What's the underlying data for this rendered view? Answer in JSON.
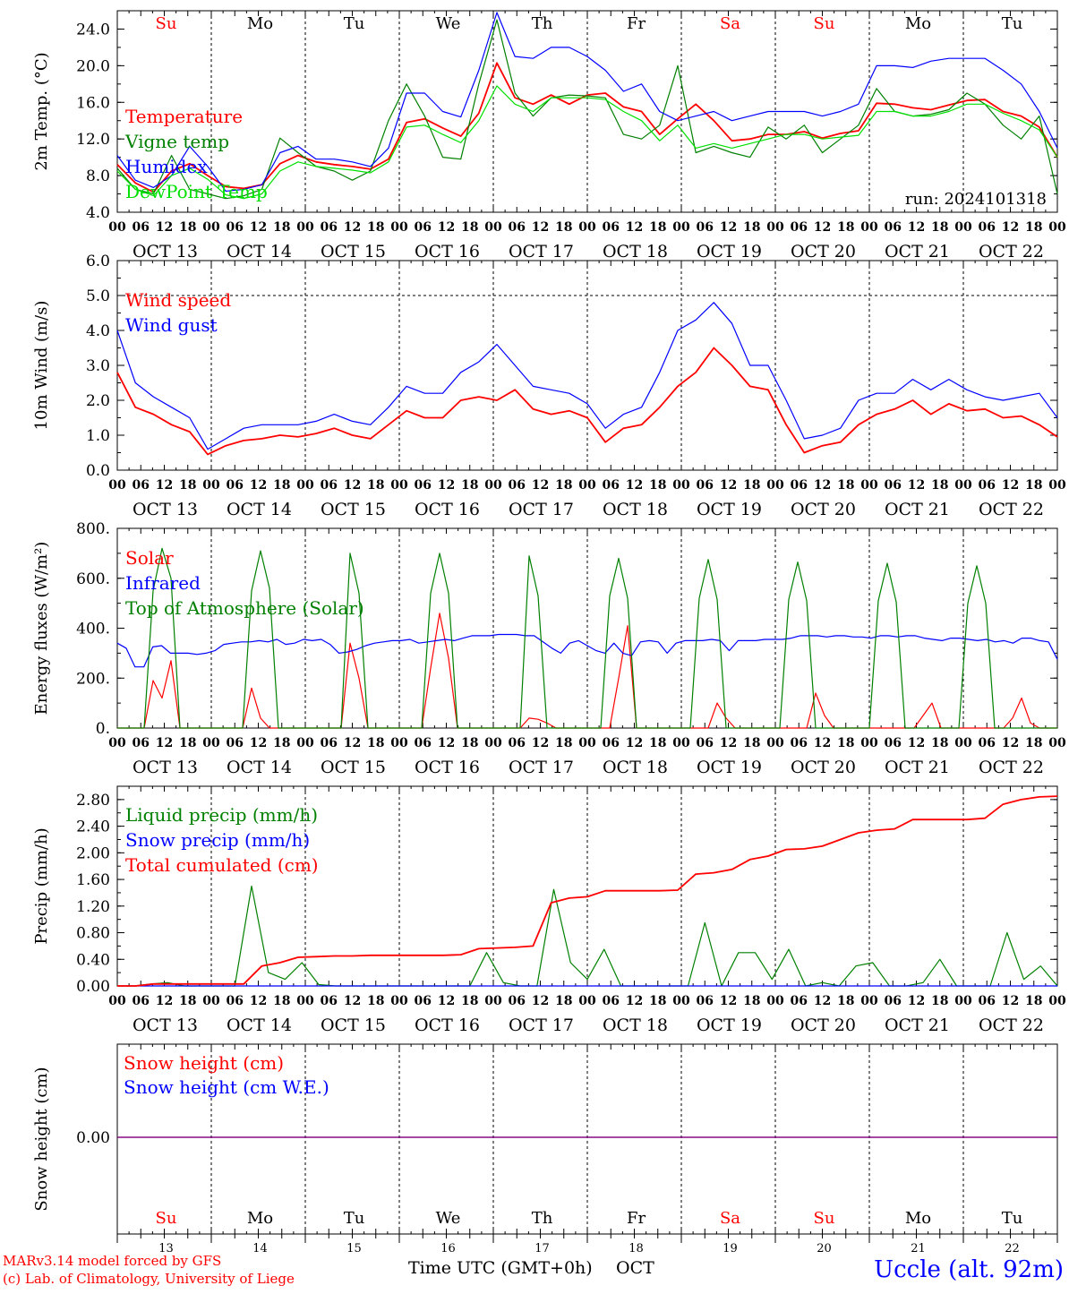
{
  "run_label": "run: 2024101318",
  "days": [
    "Su",
    "Mo",
    "Tu",
    "We",
    "Th",
    "Fr",
    "Sa",
    "Su",
    "Mo",
    "Tu"
  ],
  "weekend_color": "#ff0000",
  "date_labels": [
    "OCT 13",
    "OCT 14",
    "OCT 15",
    "OCT 16",
    "OCT 17",
    "OCT 18",
    "OCT 19",
    "OCT 20",
    "OCT 21",
    "OCT 22"
  ],
  "hour_ticks": [
    "00",
    "06",
    "12",
    "18"
  ],
  "bottom_day_numbers": [
    "13",
    "14",
    "15",
    "16",
    "17",
    "18",
    "19",
    "20",
    "21",
    "22"
  ],
  "footer": {
    "model": "MARv3.14 model forced by GFS",
    "lab": "(c) Lab. of Climatology, University of Liege",
    "axis_title": "Time UTC (GMT+0h)",
    "month": "OCT",
    "station": "Uccle (alt. 92m)"
  },
  "colors": {
    "red": "#ff0000",
    "green": "#008000",
    "blue": "#0000ff",
    "lightgreen": "#00e000",
    "purple": "#800080"
  },
  "chart_data": [
    {
      "type": "line",
      "ylabel": "2m Temp. (°C)",
      "ylim": [
        4,
        26
      ],
      "yticks": [
        "4.0",
        "8.0",
        "12.0",
        "16.0",
        "20.0",
        "24.0"
      ],
      "ytick_values": [
        4,
        8,
        12,
        16,
        20,
        24
      ],
      "x_step_hours": 6,
      "series": [
        {
          "name": "Temperature",
          "color": "#ff0000",
          "values": [
            9.2,
            7.2,
            6.2,
            8.5,
            9.3,
            8.0,
            6.8,
            6.6,
            7.0,
            9.3,
            10.2,
            9.5,
            9.2,
            9.0,
            8.7,
            9.8,
            13.8,
            14.2,
            13.2,
            12.3,
            14.8,
            20.3,
            16.5,
            15.8,
            16.8,
            15.8,
            16.8,
            17.0,
            15.5,
            15.0,
            12.5,
            14.2,
            15.8,
            14.0,
            11.8,
            12.0,
            12.5,
            12.5,
            12.8,
            12.1,
            12.6,
            12.9,
            15.9,
            15.8,
            15.4,
            15.2,
            15.7,
            16.2,
            16.3,
            15.0,
            14.5,
            13.3,
            10.0
          ]
        },
        {
          "name": "Vigne temp",
          "color": "#008000",
          "values": [
            8.8,
            6.5,
            6.0,
            10.2,
            6.5,
            6.0,
            5.5,
            5.8,
            6.5,
            12.1,
            10.5,
            9.0,
            8.5,
            7.5,
            8.5,
            14.0,
            18.0,
            14.5,
            10.0,
            9.8,
            18.0,
            25.0,
            17.0,
            14.5,
            16.5,
            16.8,
            16.7,
            16.5,
            12.5,
            12.0,
            13.5,
            20.0,
            10.5,
            11.2,
            10.5,
            10.0,
            13.3,
            12.0,
            13.5,
            10.5,
            12.0,
            13.5,
            17.5,
            15.0,
            14.5,
            14.7,
            15.2,
            17.0,
            15.8,
            13.5,
            12.0,
            14.5,
            6.0
          ]
        },
        {
          "name": "Humidex",
          "color": "#0000ff",
          "values": [
            10.2,
            7.5,
            6.7,
            8.0,
            11.2,
            9.0,
            6.3,
            6.5,
            7.0,
            10.5,
            11.2,
            9.8,
            9.8,
            9.5,
            9.0,
            11.0,
            17.0,
            17.0,
            15.0,
            14.4,
            19.5,
            25.8,
            21.0,
            20.8,
            22.0,
            22.0,
            21.0,
            19.5,
            17.2,
            18.0,
            15.0,
            14.0,
            14.5,
            15.0,
            14.0,
            14.5,
            15.0,
            15.0,
            15.0,
            14.5,
            15.0,
            15.8,
            20.0,
            20.0,
            19.8,
            20.5,
            20.8,
            20.8,
            20.8,
            19.5,
            18.0,
            15.0,
            11.0
          ]
        },
        {
          "name": "DewPoint Temp",
          "color": "#00e000",
          "values": [
            8.5,
            6.5,
            5.8,
            8.0,
            8.8,
            7.6,
            5.9,
            5.5,
            6.0,
            8.5,
            9.5,
            9.0,
            8.8,
            8.6,
            8.3,
            9.5,
            13.3,
            13.5,
            12.5,
            11.6,
            14.0,
            17.8,
            15.8,
            15.0,
            16.5,
            16.5,
            16.5,
            16.3,
            15.0,
            14.0,
            11.8,
            13.5,
            11.0,
            11.5,
            11.0,
            11.5,
            12.0,
            12.5,
            12.5,
            12.0,
            12.2,
            12.4,
            15.0,
            15.0,
            14.5,
            14.5,
            15.0,
            15.8,
            15.8,
            14.8,
            14.0,
            13.0,
            10.0
          ]
        }
      ]
    },
    {
      "type": "line",
      "ylabel": "10m Wind (m/s)",
      "ylim": [
        0,
        6
      ],
      "yticks": [
        "0.0",
        "1.0",
        "2.0",
        "3.0",
        "4.0",
        "5.0",
        "6.0"
      ],
      "ytick_values": [
        0,
        1,
        2,
        3,
        4,
        5,
        6
      ],
      "ref_line": 5.0,
      "x_step_hours": 6,
      "series": [
        {
          "name": "Wind speed",
          "color": "#ff0000",
          "values": [
            2.8,
            1.8,
            1.6,
            1.3,
            1.1,
            0.45,
            0.7,
            0.85,
            0.9,
            1.0,
            0.95,
            1.05,
            1.2,
            1.0,
            0.9,
            1.3,
            1.7,
            1.5,
            1.5,
            2.0,
            2.1,
            2.0,
            2.3,
            1.75,
            1.6,
            1.7,
            1.5,
            0.8,
            1.2,
            1.3,
            1.8,
            2.4,
            2.8,
            3.5,
            3.0,
            2.4,
            2.3,
            1.3,
            0.5,
            0.7,
            0.8,
            1.3,
            1.6,
            1.75,
            2.0,
            1.6,
            1.9,
            1.7,
            1.75,
            1.5,
            1.55,
            1.3,
            0.95
          ]
        },
        {
          "name": "Wind gust",
          "color": "#0000ff",
          "values": [
            4.0,
            2.5,
            2.1,
            1.8,
            1.5,
            0.6,
            0.9,
            1.2,
            1.3,
            1.3,
            1.3,
            1.4,
            1.6,
            1.4,
            1.3,
            1.8,
            2.4,
            2.2,
            2.2,
            2.8,
            3.1,
            3.6,
            3.0,
            2.4,
            2.3,
            2.2,
            1.9,
            1.2,
            1.6,
            1.8,
            2.8,
            4.0,
            4.3,
            4.8,
            4.2,
            3.0,
            3.0,
            2.0,
            0.9,
            1.0,
            1.2,
            2.0,
            2.2,
            2.2,
            2.6,
            2.3,
            2.6,
            2.3,
            2.1,
            2.0,
            2.1,
            2.2,
            1.5
          ]
        }
      ]
    },
    {
      "type": "line",
      "ylabel": "Energy fluxes (W/m²)",
      "ylim": [
        0,
        800
      ],
      "yticks": [
        "0.",
        "200.",
        "400.",
        "600.",
        "800."
      ],
      "ytick_values": [
        0,
        200,
        400,
        600,
        800
      ],
      "x_step_hours": 3,
      "series": [
        {
          "name": "Solar",
          "color": "#ff0000",
          "values": [
            0,
            0,
            0,
            0,
            190,
            120,
            270,
            0,
            0,
            0,
            0,
            0,
            0,
            0,
            0,
            160,
            40,
            0,
            0,
            0,
            0,
            0,
            0,
            0,
            0,
            0,
            340,
            200,
            0,
            0,
            0,
            0,
            0,
            0,
            0,
            240,
            460,
            280,
            0,
            0,
            0,
            0,
            0,
            0,
            0,
            0,
            40,
            35,
            20,
            0,
            0,
            0,
            0,
            0,
            0,
            0,
            200,
            410,
            0,
            0,
            0,
            0,
            0,
            0,
            0,
            0,
            0,
            100,
            40,
            0,
            0,
            0,
            0,
            0,
            0,
            0,
            0,
            0,
            140,
            50,
            0,
            0,
            0,
            0,
            0,
            0,
            0,
            0,
            0,
            0,
            50,
            100,
            0,
            0,
            0,
            0,
            0,
            0,
            0,
            0,
            40,
            120,
            20,
            0,
            0,
            0
          ]
        },
        {
          "name": "Infrared",
          "color": "#0000ff",
          "values": [
            340,
            320,
            245,
            245,
            325,
            330,
            300,
            300,
            300,
            295,
            300,
            310,
            335,
            340,
            345,
            345,
            350,
            345,
            355,
            335,
            340,
            355,
            350,
            355,
            335,
            300,
            305,
            315,
            330,
            340,
            345,
            350,
            350,
            355,
            340,
            345,
            350,
            355,
            350,
            360,
            370,
            370,
            370,
            375,
            375,
            375,
            370,
            370,
            345,
            320,
            300,
            340,
            350,
            330,
            310,
            300,
            340,
            300,
            290,
            345,
            350,
            345,
            300,
            340,
            350,
            350,
            350,
            355,
            350,
            310,
            350,
            350,
            350,
            355,
            355,
            355,
            360,
            370,
            370,
            370,
            365,
            370,
            370,
            365,
            365,
            360,
            370,
            370,
            365,
            370,
            370,
            360,
            355,
            350,
            360,
            360,
            355,
            350,
            355,
            345,
            350,
            340,
            360,
            360,
            350,
            345,
            275
          ]
        },
        {
          "name": "Top of Atmosphere (Solar)",
          "color": "#008000",
          "values": [
            0,
            0,
            0,
            0,
            550,
            720,
            600,
            0,
            0,
            0,
            0,
            0,
            0,
            0,
            0,
            550,
            710,
            560,
            0,
            0,
            0,
            0,
            0,
            0,
            0,
            0,
            700,
            540,
            0,
            0,
            0,
            0,
            0,
            0,
            0,
            540,
            700,
            540,
            0,
            0,
            0,
            0,
            0,
            0,
            0,
            0,
            690,
            530,
            0,
            0,
            0,
            0,
            0,
            0,
            0,
            530,
            680,
            520,
            0,
            0,
            0,
            0,
            0,
            0,
            0,
            520,
            675,
            515,
            0,
            0,
            0,
            0,
            0,
            0,
            0,
            515,
            665,
            510,
            0,
            0,
            0,
            0,
            0,
            0,
            0,
            510,
            660,
            505,
            0,
            0,
            0,
            0,
            0,
            0,
            0,
            500,
            650,
            500,
            0,
            0,
            0,
            0,
            0,
            0,
            0,
            0
          ]
        }
      ]
    },
    {
      "type": "line",
      "ylabel": "Precip (mm/h)",
      "ylim": [
        0,
        3.0
      ],
      "yticks": [
        "0.00",
        "0.40",
        "0.80",
        "1.20",
        "1.60",
        "2.00",
        "2.40",
        "2.80"
      ],
      "ytick_values": [
        0,
        0.4,
        0.8,
        1.2,
        1.6,
        2.0,
        2.4,
        2.8
      ],
      "x_step_hours": 6,
      "series": [
        {
          "name": "Liquid precip (mm/h)",
          "color": "#008000",
          "values": [
            0,
            0,
            0.03,
            0.05,
            0,
            0,
            0,
            0,
            1.5,
            0.2,
            0.1,
            0.35,
            0.02,
            0,
            0,
            0,
            0,
            0,
            0,
            0,
            0,
            0,
            0.5,
            0.05,
            0,
            0,
            1.45,
            0.35,
            0.1,
            0.55,
            0,
            0,
            0,
            0,
            0,
            0.95,
            0,
            0.5,
            0.5,
            0.1,
            0.55,
            0,
            0.05,
            0,
            0.3,
            0.35,
            0,
            0,
            0.05,
            0.4,
            0,
            0,
            0,
            0.8,
            0.1,
            0.3,
            0
          ]
        },
        {
          "name": "Snow precip (mm/h)",
          "color": "#0000ff",
          "values": [
            0,
            0,
            0,
            0,
            0,
            0,
            0,
            0,
            0,
            0,
            0,
            0,
            0,
            0,
            0,
            0,
            0,
            0,
            0,
            0,
            0,
            0,
            0,
            0,
            0,
            0,
            0,
            0,
            0,
            0,
            0,
            0,
            0,
            0,
            0,
            0,
            0,
            0,
            0,
            0,
            0,
            0,
            0,
            0,
            0,
            0,
            0,
            0,
            0,
            0,
            0,
            0,
            0,
            0,
            0,
            0,
            0
          ]
        },
        {
          "name": "Total cumulated (cm)",
          "color": "#ff0000",
          "values": [
            0,
            0,
            0.03,
            0.03,
            0.03,
            0.03,
            0.03,
            0.03,
            0.3,
            0.35,
            0.43,
            0.44,
            0.45,
            0.45,
            0.46,
            0.46,
            0.46,
            0.46,
            0.46,
            0.47,
            0.56,
            0.57,
            0.58,
            0.6,
            1.25,
            1.32,
            1.34,
            1.43,
            1.43,
            1.43,
            1.43,
            1.44,
            1.68,
            1.7,
            1.75,
            1.9,
            1.95,
            2.05,
            2.06,
            2.1,
            2.2,
            2.3,
            2.34,
            2.36,
            2.5,
            2.5,
            2.5,
            2.5,
            2.52,
            2.73,
            2.8,
            2.84,
            2.85
          ]
        }
      ]
    },
    {
      "type": "line",
      "ylabel": "Snow height (cm)",
      "yticks": [
        "0.00"
      ],
      "ytick_values": [
        0
      ],
      "series": [
        {
          "name": "Snow height (cm)",
          "color": "#ff0000",
          "values": [
            0,
            0
          ]
        },
        {
          "name": "Snow height (cm W.E.)",
          "color": "#0000ff",
          "values": [
            0,
            0
          ]
        }
      ]
    }
  ]
}
